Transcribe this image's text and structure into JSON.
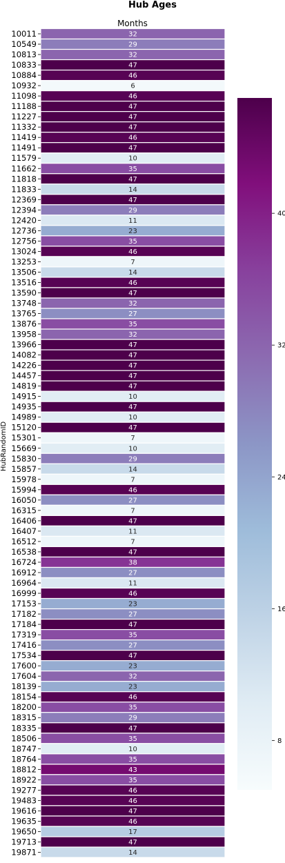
{
  "chart_data": {
    "type": "heatmap",
    "title": "Hub Ages",
    "xlabel": "Months",
    "ylabel": "HubRandomID",
    "colormap": "BuPu",
    "color_range": [
      5,
      47
    ],
    "colorbar_ticks": [
      8,
      16,
      24,
      32,
      40
    ],
    "grid": false,
    "legend": "colorbar-right",
    "rows": [
      {
        "id": "10011",
        "value": 32
      },
      {
        "id": "10549",
        "value": 29
      },
      {
        "id": "10813",
        "value": 32
      },
      {
        "id": "10833",
        "value": 47
      },
      {
        "id": "10884",
        "value": 46
      },
      {
        "id": "10932",
        "value": 6
      },
      {
        "id": "11098",
        "value": 46
      },
      {
        "id": "11188",
        "value": 47
      },
      {
        "id": "11227",
        "value": 47
      },
      {
        "id": "11332",
        "value": 47
      },
      {
        "id": "11419",
        "value": 46
      },
      {
        "id": "11491",
        "value": 47
      },
      {
        "id": "11579",
        "value": 10
      },
      {
        "id": "11662",
        "value": 35
      },
      {
        "id": "11818",
        "value": 47
      },
      {
        "id": "11833",
        "value": 14
      },
      {
        "id": "12369",
        "value": 47
      },
      {
        "id": "12394",
        "value": 29
      },
      {
        "id": "12420",
        "value": 11
      },
      {
        "id": "12736",
        "value": 23
      },
      {
        "id": "12756",
        "value": 35
      },
      {
        "id": "13024",
        "value": 46
      },
      {
        "id": "13253",
        "value": 7
      },
      {
        "id": "13506",
        "value": 14
      },
      {
        "id": "13516",
        "value": 46
      },
      {
        "id": "13590",
        "value": 47
      },
      {
        "id": "13748",
        "value": 32
      },
      {
        "id": "13765",
        "value": 27
      },
      {
        "id": "13876",
        "value": 35
      },
      {
        "id": "13958",
        "value": 32
      },
      {
        "id": "13966",
        "value": 47
      },
      {
        "id": "14082",
        "value": 47
      },
      {
        "id": "14226",
        "value": 47
      },
      {
        "id": "14457",
        "value": 47
      },
      {
        "id": "14819",
        "value": 47
      },
      {
        "id": "14915",
        "value": 10
      },
      {
        "id": "14935",
        "value": 47
      },
      {
        "id": "14989",
        "value": 10
      },
      {
        "id": "15120",
        "value": 47
      },
      {
        "id": "15301",
        "value": 7
      },
      {
        "id": "15669",
        "value": 10
      },
      {
        "id": "15830",
        "value": 29
      },
      {
        "id": "15857",
        "value": 14
      },
      {
        "id": "15978",
        "value": 7
      },
      {
        "id": "15994",
        "value": 46
      },
      {
        "id": "16050",
        "value": 27
      },
      {
        "id": "16315",
        "value": 7
      },
      {
        "id": "16406",
        "value": 47
      },
      {
        "id": "16407",
        "value": 11
      },
      {
        "id": "16512",
        "value": 7
      },
      {
        "id": "16538",
        "value": 47
      },
      {
        "id": "16724",
        "value": 38
      },
      {
        "id": "16912",
        "value": 27
      },
      {
        "id": "16964",
        "value": 11
      },
      {
        "id": "16999",
        "value": 46
      },
      {
        "id": "17153",
        "value": 23
      },
      {
        "id": "17182",
        "value": 27
      },
      {
        "id": "17184",
        "value": 47
      },
      {
        "id": "17319",
        "value": 35
      },
      {
        "id": "17416",
        "value": 27
      },
      {
        "id": "17534",
        "value": 47
      },
      {
        "id": "17600",
        "value": 23
      },
      {
        "id": "17604",
        "value": 32
      },
      {
        "id": "18139",
        "value": 23
      },
      {
        "id": "18154",
        "value": 46
      },
      {
        "id": "18200",
        "value": 35
      },
      {
        "id": "18315",
        "value": 29
      },
      {
        "id": "18335",
        "value": 47
      },
      {
        "id": "18506",
        "value": 35
      },
      {
        "id": "18747",
        "value": 10
      },
      {
        "id": "18764",
        "value": 35
      },
      {
        "id": "18812",
        "value": 43
      },
      {
        "id": "18922",
        "value": 35
      },
      {
        "id": "19277",
        "value": 46
      },
      {
        "id": "19483",
        "value": 46
      },
      {
        "id": "19616",
        "value": 47
      },
      {
        "id": "19635",
        "value": 46
      },
      {
        "id": "19650",
        "value": 17
      },
      {
        "id": "19713",
        "value": 47
      },
      {
        "id": "19871",
        "value": 14
      }
    ]
  }
}
